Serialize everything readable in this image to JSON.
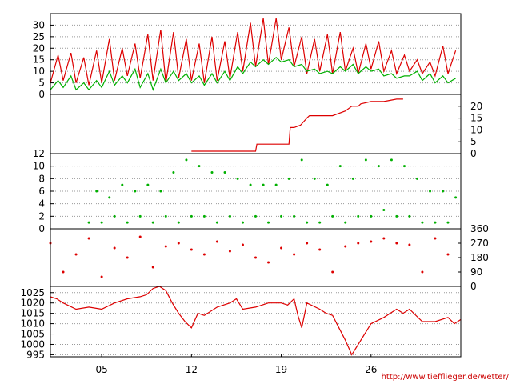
{
  "footer": {
    "url": "http://www.tiefflieger.de/wetter/"
  },
  "colors": {
    "red": "#dd0000",
    "green": "#00b000",
    "grid": "#999999",
    "frame": "#000000"
  },
  "chart_data": [
    {
      "type": "line",
      "title": "",
      "ylim": [
        0,
        35
      ],
      "yticks": [
        "0",
        "5",
        "10",
        "15",
        "20",
        "25",
        "30"
      ],
      "axis_side": "left",
      "grid": true,
      "series": [
        {
          "color": "red",
          "x": [
            1,
            1.6,
            2,
            2.6,
            3,
            3.6,
            4,
            4.6,
            5,
            5.6,
            6,
            6.6,
            7,
            7.6,
            8,
            8.6,
            9,
            9.6,
            10,
            10.6,
            11,
            11.6,
            12,
            12.6,
            13,
            13.6,
            14,
            14.6,
            15,
            15.6,
            16,
            16.6,
            17,
            17.6,
            18,
            18.6,
            19,
            19.6,
            20,
            20.6,
            21,
            21.6,
            22,
            22.6,
            23,
            23.6,
            24,
            24.6,
            25,
            25.6,
            26,
            26.6,
            27,
            27.6,
            28,
            28.6,
            29,
            29.6,
            30,
            30.6,
            31,
            31.6,
            32,
            32.6
          ],
          "y": [
            5,
            17,
            6,
            18,
            5,
            16,
            4,
            19,
            5,
            24,
            6,
            20,
            8,
            22,
            7,
            26,
            6,
            28,
            5,
            27,
            7,
            24,
            6,
            22,
            5,
            25,
            6,
            23,
            7,
            27,
            10,
            31,
            12,
            33,
            13,
            33,
            15,
            29,
            12,
            25,
            9,
            24,
            10,
            26,
            9,
            27,
            10,
            20,
            9,
            22,
            11,
            23,
            10,
            19,
            9,
            17,
            10,
            15,
            9,
            14,
            8,
            21,
            9,
            19
          ]
        },
        {
          "color": "green",
          "x": [
            1,
            1.6,
            2,
            2.6,
            3,
            3.6,
            4,
            4.6,
            5,
            5.6,
            6,
            6.6,
            7,
            7.6,
            8,
            8.6,
            9,
            9.6,
            10,
            10.6,
            11,
            11.6,
            12,
            12.6,
            13,
            13.6,
            14,
            14.6,
            15,
            15.6,
            16,
            16.6,
            17,
            17.6,
            18,
            18.6,
            19,
            19.6,
            20,
            20.6,
            21,
            21.6,
            22,
            22.6,
            23,
            23.6,
            24,
            24.6,
            25,
            25.6,
            26,
            26.6,
            27,
            27.6,
            28,
            28.6,
            29,
            29.6,
            30,
            30.6,
            31,
            31.6,
            32,
            32.6
          ],
          "y": [
            2,
            6,
            3,
            8,
            2,
            5,
            2,
            6,
            3,
            10,
            4,
            8,
            5,
            11,
            3,
            9,
            2,
            11,
            5,
            10,
            6,
            9,
            5,
            8,
            4,
            9,
            5,
            10,
            6,
            12,
            9,
            14,
            12,
            15,
            13,
            16,
            14,
            15,
            12,
            13,
            10,
            11,
            9,
            10,
            9,
            12,
            10,
            13,
            9,
            12,
            10,
            11,
            8,
            9,
            7,
            8,
            8,
            10,
            6,
            9,
            5,
            8,
            5,
            7
          ]
        }
      ]
    },
    {
      "type": "line",
      "title": "",
      "ylim": [
        0,
        25
      ],
      "yticks": [
        "0",
        "5",
        "10",
        "15",
        "20"
      ],
      "axis_side": "right",
      "grid": false,
      "series": [
        {
          "color": "red",
          "x": [
            12,
            13,
            14,
            15,
            16,
            17,
            17.1,
            18,
            19,
            19.6,
            19.7,
            20,
            20.5,
            21,
            21.2,
            22,
            23,
            24,
            24.5,
            25,
            25.2,
            26,
            27,
            28,
            28.5
          ],
          "y": [
            1,
            1,
            1,
            1,
            1,
            1,
            4,
            4,
            4,
            4,
            11,
            11,
            12,
            15,
            16,
            16,
            16,
            18,
            20,
            20,
            21,
            22,
            22,
            23,
            23
          ]
        }
      ]
    },
    {
      "type": "scatter",
      "title": "",
      "ylim": [
        0,
        12
      ],
      "yticks": [
        "0",
        "2",
        "4",
        "6",
        "8",
        "10",
        "12"
      ],
      "axis_side": "left",
      "grid": true,
      "series": [
        {
          "color": "green",
          "x": [
            4,
            4.6,
            5,
            5.6,
            6,
            6.6,
            7,
            7.6,
            8,
            8.6,
            9,
            9.6,
            10,
            10.6,
            11,
            11.6,
            12,
            12.6,
            13,
            13.6,
            14,
            14.6,
            15,
            15.6,
            16,
            16.6,
            17,
            17.6,
            18,
            18.6,
            19,
            19.6,
            20,
            20.6,
            21,
            21.6,
            22,
            22.6,
            23,
            23.6,
            24,
            24.6,
            25,
            25.6,
            26,
            26.6,
            27,
            27.6,
            28,
            28.6,
            29,
            29.6,
            30,
            30.6,
            31,
            31.6,
            32,
            32.6
          ],
          "y": [
            1,
            6,
            1,
            5,
            2,
            7,
            1,
            6,
            2,
            7,
            1,
            6,
            2,
            9,
            1,
            11,
            2,
            10,
            2,
            9,
            1,
            9,
            2,
            8,
            1,
            7,
            2,
            7,
            1,
            7,
            2,
            8,
            2,
            11,
            1,
            8,
            1,
            7,
            2,
            10,
            1,
            8,
            2,
            11,
            2,
            10,
            3,
            11,
            2,
            10,
            2,
            8,
            1,
            6,
            1,
            6,
            1,
            5
          ]
        }
      ]
    },
    {
      "type": "scatter",
      "title": "",
      "ylim": [
        0,
        360
      ],
      "yticks": [
        "0",
        "90",
        "180",
        "270",
        "360"
      ],
      "axis_side": "right",
      "grid": false,
      "series": [
        {
          "color": "red",
          "x": [
            1,
            2,
            3,
            4,
            5,
            6,
            7,
            8,
            9,
            10,
            11,
            12,
            13,
            14,
            15,
            16,
            17,
            18,
            19,
            20,
            21,
            22,
            23,
            24,
            25,
            26,
            27,
            28,
            29,
            30,
            31,
            32
          ],
          "y": [
            270,
            90,
            200,
            300,
            60,
            240,
            180,
            310,
            120,
            250,
            270,
            230,
            200,
            280,
            220,
            260,
            180,
            150,
            240,
            200,
            270,
            230,
            90,
            250,
            270,
            280,
            300,
            270,
            260,
            90,
            300,
            200
          ]
        }
      ]
    },
    {
      "type": "line",
      "title": "",
      "ylim": [
        994,
        1028
      ],
      "yticks": [
        "995",
        "1000",
        "1005",
        "1010",
        "1015",
        "1020",
        "1025"
      ],
      "axis_side": "left",
      "grid": true,
      "xticks": [
        "05",
        "12",
        "19",
        "26"
      ],
      "xtick_values": [
        5,
        12,
        19,
        26
      ],
      "series": [
        {
          "color": "red",
          "x": [
            1,
            1.5,
            2,
            3,
            4,
            5,
            6,
            7,
            8,
            8.5,
            9,
            9.5,
            10,
            10.5,
            11,
            11.5,
            12,
            12.5,
            13,
            14,
            15,
            15.5,
            16,
            17,
            18,
            19,
            19.5,
            20,
            20.3,
            20.6,
            21,
            22,
            22.5,
            23,
            23.5,
            24,
            24.5,
            25,
            26,
            27,
            27.5,
            28,
            28.5,
            29,
            30,
            31,
            32,
            32.5,
            33
          ],
          "y": [
            1023,
            1022,
            1020,
            1017,
            1018,
            1017,
            1020,
            1022,
            1023,
            1024,
            1027,
            1028,
            1026,
            1020,
            1015,
            1011,
            1008,
            1015,
            1014,
            1018,
            1020,
            1022,
            1017,
            1018,
            1020,
            1020,
            1019,
            1022,
            1014,
            1008,
            1020,
            1017,
            1015,
            1014,
            1008,
            1002,
            995,
            1000,
            1010,
            1013,
            1015,
            1017,
            1015,
            1017,
            1011,
            1011,
            1013,
            1010,
            1012
          ]
        }
      ]
    }
  ],
  "x_range": [
    1,
    33
  ]
}
